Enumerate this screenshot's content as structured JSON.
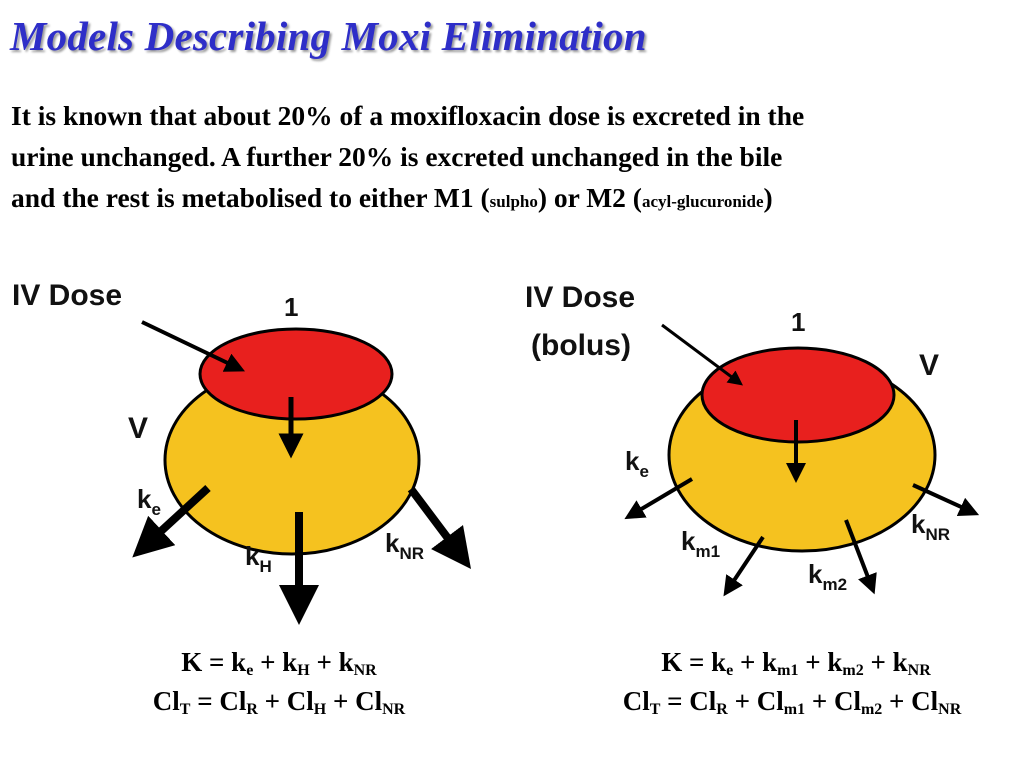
{
  "title": "Models Describing Moxi Elimination",
  "intro": {
    "line1": "It is known that about 20% of a moxifloxacin dose is excreted in the",
    "line2": "urine unchanged.  A further 20% is excreted unchanged in the bile",
    "line3_a": "and the rest is metabolised to either M1 (",
    "line3_b": "sulpho",
    "line3_c": ") or M2 (",
    "line3_d": "acyl-glucuronide",
    "line3_e": ")"
  },
  "colors": {
    "title": "#2E2EC8",
    "inner": "#E8201E",
    "outer": "#F5C21F",
    "outline": "#000000"
  },
  "left_model": {
    "dose_label": "IV Dose",
    "central_label": "1",
    "volume_label": "V",
    "ke": {
      "main": "k",
      "sub": "e"
    },
    "kh": {
      "main": "k",
      "sub": "H"
    },
    "knr": {
      "main": "k",
      "sub": "NR"
    },
    "eq1": {
      "K": "K",
      "eq": "=",
      "plus": "+",
      "ke": "k",
      "ke_sub": "e",
      "kh": "k",
      "kh_sub": "H",
      "knr": "k",
      "knr_sub": "NR"
    },
    "eq2": {
      "clt": "Cl",
      "clt_sub": "T",
      "eq": "=",
      "plus": "+",
      "clr": "Cl",
      "clr_sub": "R",
      "clh": "Cl",
      "clh_sub": "H",
      "clnr": "Cl",
      "clnr_sub": "NR"
    }
  },
  "right_model": {
    "dose_label_1": "IV Dose",
    "dose_label_2": "(bolus)",
    "central_label": "1",
    "volume_label": "V",
    "ke": {
      "main": "k",
      "sub": "e"
    },
    "km1": {
      "main": "k",
      "sub": "m1"
    },
    "km2": {
      "main": "k",
      "sub": "m2"
    },
    "knr": {
      "main": "k",
      "sub": "NR"
    },
    "eq1": {
      "K": "K",
      "eq": "=",
      "plus": "+",
      "ke": "k",
      "ke_sub": "e",
      "km1": "k",
      "km1_sub": "m1",
      "km2": "k",
      "km2_sub": "m2",
      "knr": "k",
      "knr_sub": "NR"
    },
    "eq2": {
      "clt": "Cl",
      "clt_sub": "T",
      "eq": "=",
      "plus": "+",
      "clr": "Cl",
      "clr_sub": "R",
      "clm1": "Cl",
      "clm1_sub": "m1",
      "clm2": "Cl",
      "clm2_sub": "m2",
      "clnr": "Cl",
      "clnr_sub": "NR"
    }
  }
}
